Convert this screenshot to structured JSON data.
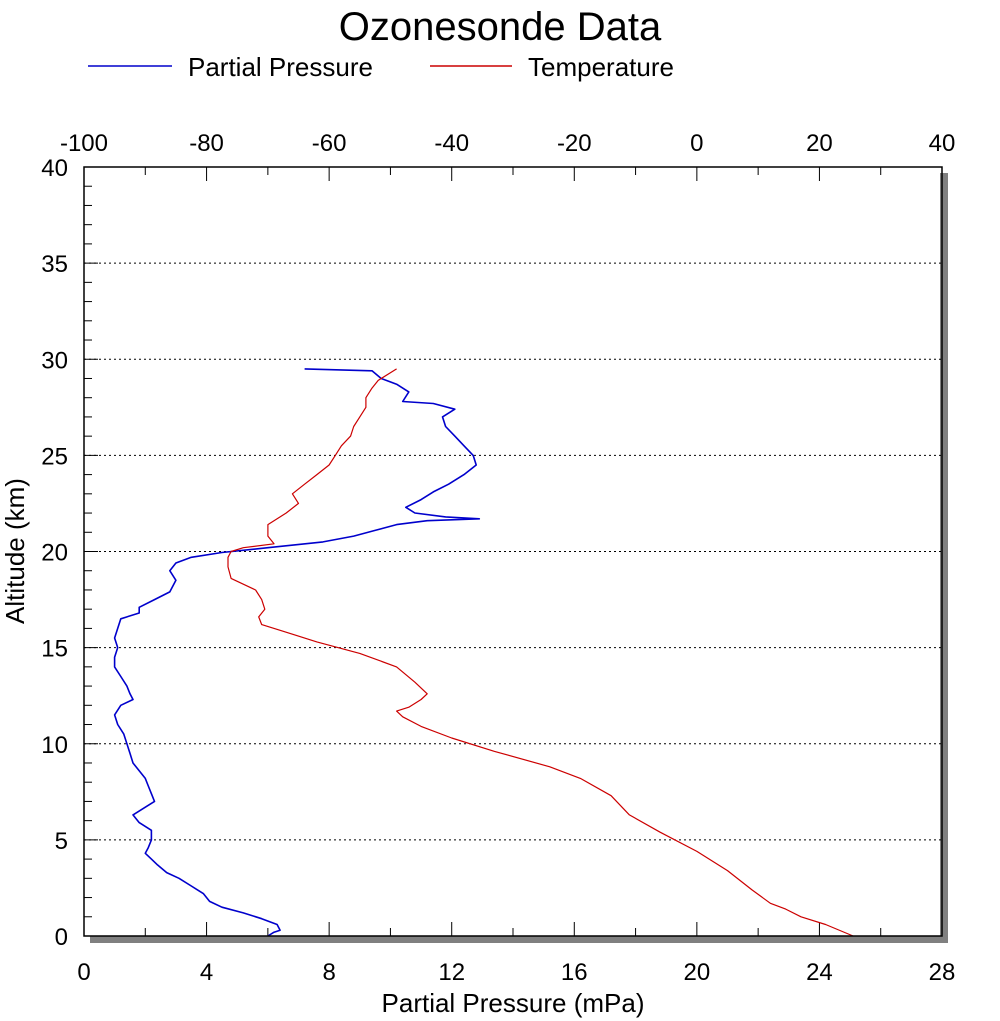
{
  "chart_data": {
    "type": "line",
    "title": "Ozonesonde Data",
    "xlabel": "Partial Pressure (mPa)",
    "ylabel": "Altitude (km)",
    "x_bottom_range": [
      0,
      28
    ],
    "x_bottom_ticks": [
      "0",
      "4",
      "8",
      "12",
      "16",
      "20",
      "24",
      "28"
    ],
    "x_top_range": [
      -100,
      40
    ],
    "x_top_ticks": [
      "-100",
      "-80",
      "-60",
      "-40",
      "-20",
      "0",
      "20",
      "40"
    ],
    "y_range": [
      0,
      40
    ],
    "y_ticks": [
      "0",
      "5",
      "10",
      "15",
      "20",
      "25",
      "30",
      "35",
      "40"
    ],
    "grid": "horizontal dotted",
    "legend_position": "top",
    "series": [
      {
        "name": "Partial Pressure",
        "axis": "bottom",
        "color": "#0000cc",
        "points": [
          [
            6.0,
            0.0
          ],
          [
            6.2,
            0.2
          ],
          [
            6.4,
            0.3
          ],
          [
            6.3,
            0.6
          ],
          [
            5.8,
            0.9
          ],
          [
            5.2,
            1.2
          ],
          [
            4.5,
            1.5
          ],
          [
            4.1,
            1.8
          ],
          [
            3.9,
            2.2
          ],
          [
            3.5,
            2.6
          ],
          [
            3.1,
            3.0
          ],
          [
            2.7,
            3.3
          ],
          [
            2.4,
            3.7
          ],
          [
            2.2,
            4.0
          ],
          [
            2.0,
            4.3
          ],
          [
            2.1,
            4.6
          ],
          [
            2.2,
            5.0
          ],
          [
            2.2,
            5.5
          ],
          [
            1.8,
            5.9
          ],
          [
            1.6,
            6.3
          ],
          [
            2.0,
            6.7
          ],
          [
            2.3,
            7.0
          ],
          [
            2.2,
            7.4
          ],
          [
            2.1,
            7.8
          ],
          [
            2.0,
            8.2
          ],
          [
            1.8,
            8.6
          ],
          [
            1.6,
            9.0
          ],
          [
            1.5,
            9.5
          ],
          [
            1.4,
            10.0
          ],
          [
            1.3,
            10.5
          ],
          [
            1.1,
            11.0
          ],
          [
            1.0,
            11.5
          ],
          [
            1.2,
            12.0
          ],
          [
            1.6,
            12.3
          ],
          [
            1.5,
            12.6
          ],
          [
            1.4,
            13.0
          ],
          [
            1.2,
            13.5
          ],
          [
            1.0,
            14.0
          ],
          [
            1.0,
            14.5
          ],
          [
            1.1,
            15.0
          ],
          [
            1.0,
            15.5
          ],
          [
            1.1,
            16.0
          ],
          [
            1.2,
            16.5
          ],
          [
            1.8,
            16.8
          ],
          [
            1.8,
            17.1
          ],
          [
            2.3,
            17.5
          ],
          [
            2.8,
            17.9
          ],
          [
            3.0,
            18.5
          ],
          [
            2.8,
            19.0
          ],
          [
            3.0,
            19.4
          ],
          [
            3.5,
            19.7
          ],
          [
            4.5,
            19.95
          ],
          [
            6.0,
            20.2
          ],
          [
            7.8,
            20.5
          ],
          [
            8.8,
            20.8
          ],
          [
            9.5,
            21.1
          ],
          [
            10.2,
            21.4
          ],
          [
            11.2,
            21.6
          ],
          [
            12.9,
            21.7
          ],
          [
            11.8,
            21.8
          ],
          [
            10.8,
            22.0
          ],
          [
            10.5,
            22.3
          ],
          [
            11.0,
            22.7
          ],
          [
            11.4,
            23.1
          ],
          [
            11.9,
            23.5
          ],
          [
            12.4,
            24.0
          ],
          [
            12.8,
            24.5
          ],
          [
            12.7,
            25.0
          ],
          [
            12.4,
            25.5
          ],
          [
            12.1,
            26.0
          ],
          [
            11.8,
            26.5
          ],
          [
            11.7,
            27.0
          ],
          [
            12.1,
            27.4
          ],
          [
            11.4,
            27.7
          ],
          [
            10.4,
            27.8
          ],
          [
            10.6,
            28.3
          ],
          [
            10.2,
            28.7
          ],
          [
            9.7,
            29.0
          ],
          [
            9.4,
            29.4
          ],
          [
            7.2,
            29.5
          ]
        ]
      },
      {
        "name": "Temperature",
        "axis": "top",
        "color": "#cc0000",
        "points": [
          [
            25.5,
            0.0
          ],
          [
            21.0,
            0.6
          ],
          [
            17.0,
            1.0
          ],
          [
            14.5,
            1.4
          ],
          [
            12.0,
            1.7
          ],
          [
            9.0,
            2.4
          ],
          [
            5.0,
            3.4
          ],
          [
            0.0,
            4.4
          ],
          [
            -6.0,
            5.4
          ],
          [
            -11.0,
            6.3
          ],
          [
            -14.0,
            7.3
          ],
          [
            -19.0,
            8.2
          ],
          [
            -24.0,
            8.8
          ],
          [
            -33.0,
            9.6
          ],
          [
            -40.0,
            10.3
          ],
          [
            -45.0,
            10.9
          ],
          [
            -48.0,
            11.4
          ],
          [
            -49.0,
            11.7
          ],
          [
            -47.0,
            11.9
          ],
          [
            -45.0,
            12.3
          ],
          [
            -44.0,
            12.6
          ],
          [
            -46.0,
            13.2
          ],
          [
            -49.0,
            14.0
          ],
          [
            -55.0,
            14.7
          ],
          [
            -62.0,
            15.3
          ],
          [
            -68.0,
            15.9
          ],
          [
            -71.0,
            16.2
          ],
          [
            -71.5,
            16.6
          ],
          [
            -70.5,
            17.0
          ],
          [
            -71.0,
            17.5
          ],
          [
            -72.0,
            18.0
          ],
          [
            -76.0,
            18.6
          ],
          [
            -76.5,
            19.2
          ],
          [
            -76.5,
            19.7
          ],
          [
            -76.0,
            20.0
          ],
          [
            -74.0,
            20.2
          ],
          [
            -69.0,
            20.4
          ],
          [
            -70.0,
            20.8
          ],
          [
            -70.0,
            21.4
          ],
          [
            -67.0,
            22.0
          ],
          [
            -65.0,
            22.5
          ],
          [
            -66.0,
            23.0
          ],
          [
            -64.0,
            23.5
          ],
          [
            -62.0,
            24.0
          ],
          [
            -60.0,
            24.5
          ],
          [
            -59.0,
            25.0
          ],
          [
            -58.0,
            25.5
          ],
          [
            -56.5,
            26.0
          ],
          [
            -56.0,
            26.5
          ],
          [
            -55.0,
            27.0
          ],
          [
            -54.0,
            27.5
          ],
          [
            -54.0,
            28.0
          ],
          [
            -53.0,
            28.5
          ],
          [
            -52.0,
            28.9
          ],
          [
            -50.0,
            29.3
          ],
          [
            -49.0,
            29.5
          ]
        ]
      }
    ]
  }
}
